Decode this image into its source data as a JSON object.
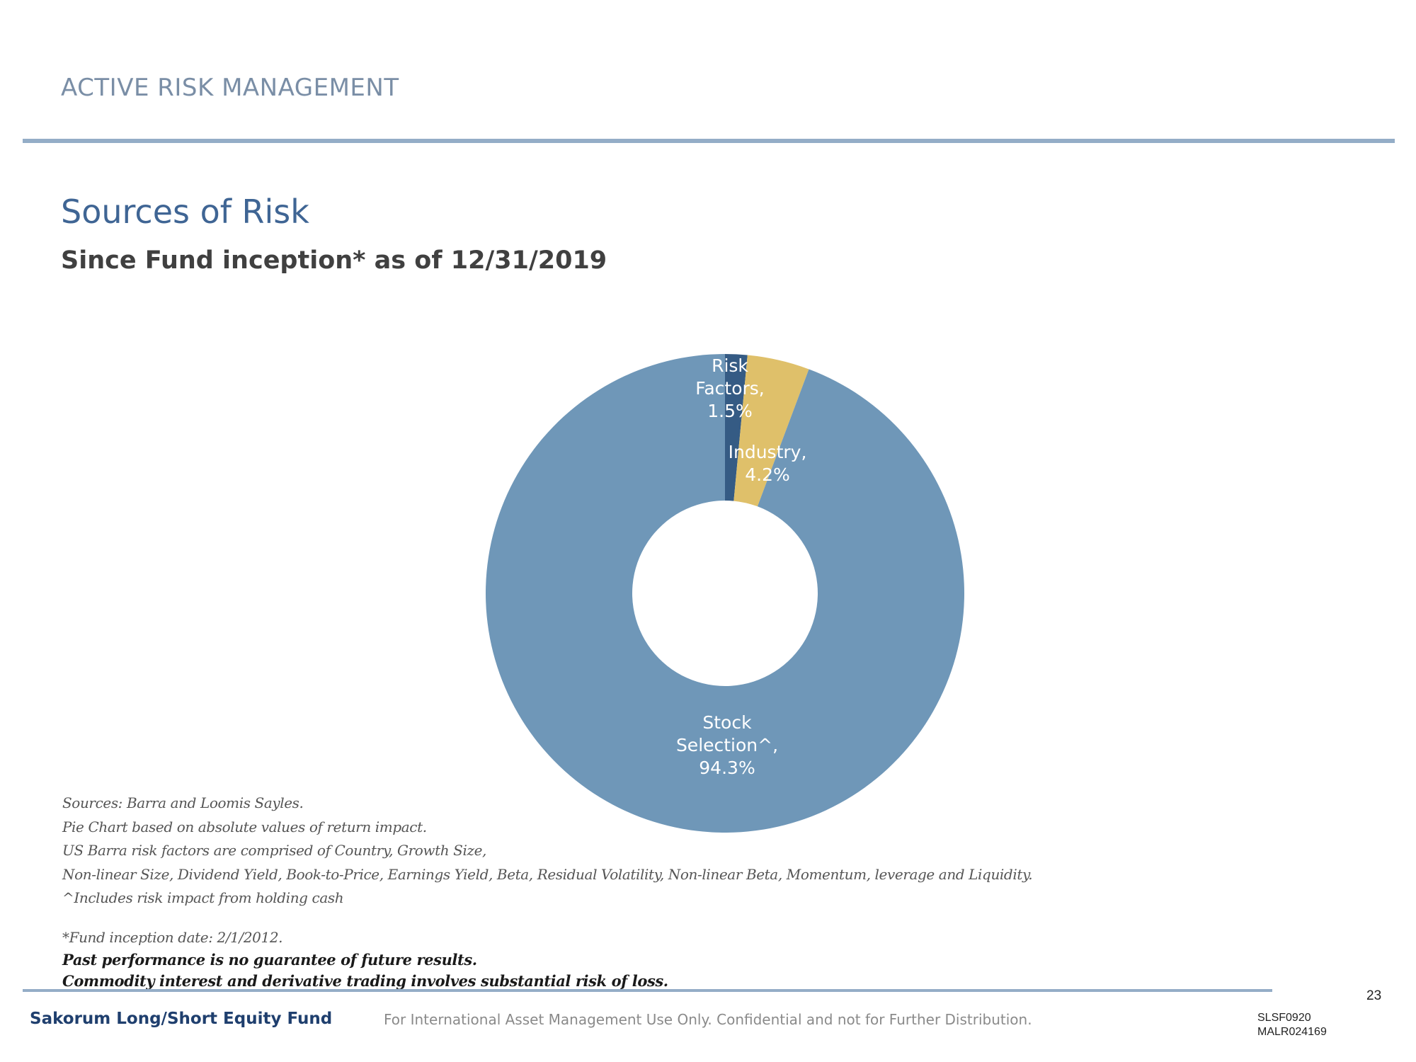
{
  "header": {
    "section_label": "ACTIVE RISK MANAGEMENT"
  },
  "page": {
    "title": "Sources of Risk",
    "subtitle": "Since Fund inception* as of 12/31/2019"
  },
  "chart_data": {
    "type": "pie",
    "variant": "donut",
    "start": "top, clockwise",
    "slices": [
      {
        "label_lines": [
          "Risk",
          "Factors,",
          "1.5%"
        ],
        "name": "Risk Factors",
        "value": 1.5,
        "color": "#355b84"
      },
      {
        "label_lines": [
          "Industry,",
          "4.2%"
        ],
        "name": "Industry",
        "value": 4.2,
        "color": "#dfc06a"
      },
      {
        "label_lines": [
          "Stock",
          "Selection^,",
          "94.3%"
        ],
        "name": "Stock Selection^",
        "value": 94.3,
        "color": "#6f97b8"
      }
    ],
    "label_color": "#ffffff"
  },
  "notes": {
    "lines": [
      "Sources: Barra and Loomis Sayles.",
      "Pie Chart based on absolute values of return impact.",
      "US Barra risk factors are comprised of Country, Growth Size,",
      "Non-linear Size, Dividend Yield, Book-to-Price, Earnings Yield, Beta, Residual Volatility, Non-linear Beta, Momentum, leverage and Liquidity.",
      "^Includes risk impact from holding cash"
    ],
    "inception": "*Fund inception date: 2/1/2012.",
    "bold_lines": [
      "Past performance is no guarantee of future results.",
      "Commodity interest and derivative trading involves substantial risk of loss."
    ]
  },
  "footer": {
    "page_number": "23",
    "fund_name": "Sakorum Long/Short Equity Fund",
    "disclaimer": "For International Asset Management Use Only. Confidential and not for Further Distribution.",
    "codes": [
      "SLSF0920",
      "MALR024169"
    ]
  }
}
